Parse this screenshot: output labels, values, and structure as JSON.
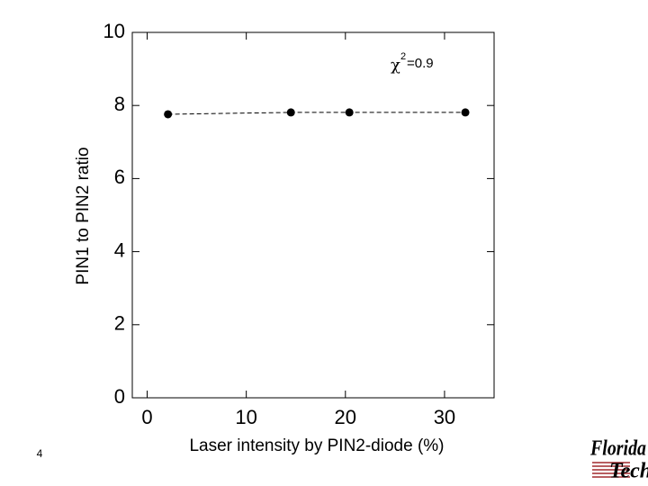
{
  "page_number": "4",
  "logo": {
    "line1": "Florida",
    "line2": "Tech"
  },
  "chart_data": {
    "type": "scatter",
    "x_label": "Laser intensity by PIN2-diode (%)",
    "y_label": "PIN1 to PIN2 ratio",
    "annotation": {
      "symbol": "χ",
      "superscript": "2",
      "text": "=0.9"
    },
    "x": [
      2.1,
      14.5,
      20.4,
      32.1
    ],
    "series": [
      {
        "values": [
          7.76,
          7.81,
          7.81,
          7.81
        ],
        "color": "#000000"
      }
    ],
    "line_style": "dashed",
    "xlim": [
      -1.5,
      35
    ],
    "xticks": [
      0,
      10,
      20,
      30
    ],
    "ylim": [
      0,
      10
    ],
    "yticks": [
      0,
      2,
      4,
      6,
      8,
      10
    ]
  }
}
